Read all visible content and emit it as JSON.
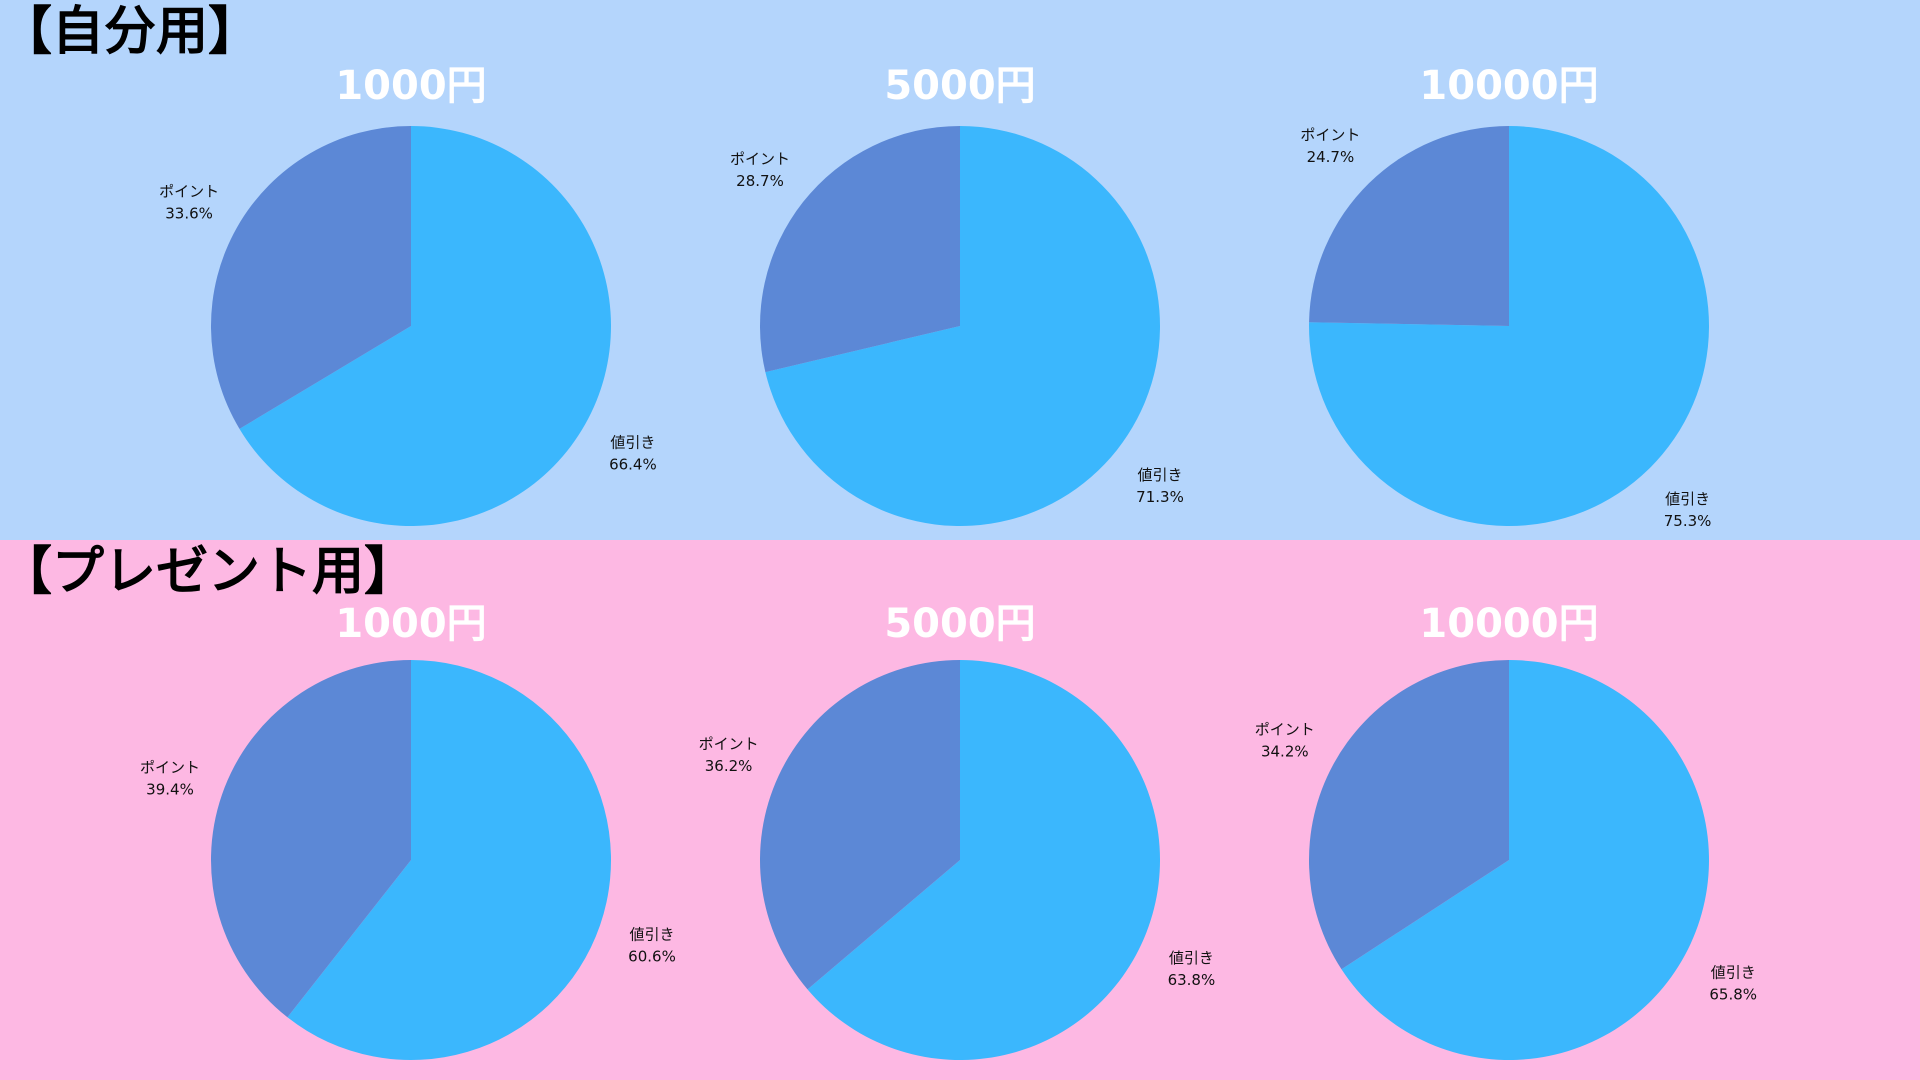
{
  "colors": {
    "section_backgrounds": [
      "#b4d5fc",
      "#fdb8e3"
    ],
    "point_slice": "#5c88d6",
    "discount_slice": "#3bb7fd",
    "chart_title": "#ffffff"
  },
  "sections": [
    {
      "title": "【自分用】"
    },
    {
      "title": "【プレゼント用】"
    }
  ],
  "chart_data": [
    {
      "type": "pie",
      "title": "1000円",
      "labels": [
        "値引き",
        "ポイント"
      ],
      "values": [
        66.4,
        33.6
      ],
      "value_labels": [
        "66.4%",
        "33.6%"
      ]
    },
    {
      "type": "pie",
      "title": "5000円",
      "labels": [
        "値引き",
        "ポイント"
      ],
      "values": [
        71.3,
        28.7
      ],
      "value_labels": [
        "71.3%",
        "28.7%"
      ]
    },
    {
      "type": "pie",
      "title": "10000円",
      "labels": [
        "値引き",
        "ポイント"
      ],
      "values": [
        75.3,
        24.7
      ],
      "value_labels": [
        "75.3%",
        "24.7%"
      ]
    },
    {
      "type": "pie",
      "title": "1000円",
      "labels": [
        "値引き",
        "ポイント"
      ],
      "values": [
        60.6,
        39.4
      ],
      "value_labels": [
        "60.6%",
        "39.4%"
      ]
    },
    {
      "type": "pie",
      "title": "5000円",
      "labels": [
        "値引き",
        "ポイント"
      ],
      "values": [
        63.8,
        36.2
      ],
      "value_labels": [
        "63.8%",
        "36.2%"
      ]
    },
    {
      "type": "pie",
      "title": "10000円",
      "labels": [
        "値引き",
        "ポイント"
      ],
      "values": [
        65.8,
        34.2
      ],
      "value_labels": [
        "65.8%",
        "34.2%"
      ]
    }
  ]
}
